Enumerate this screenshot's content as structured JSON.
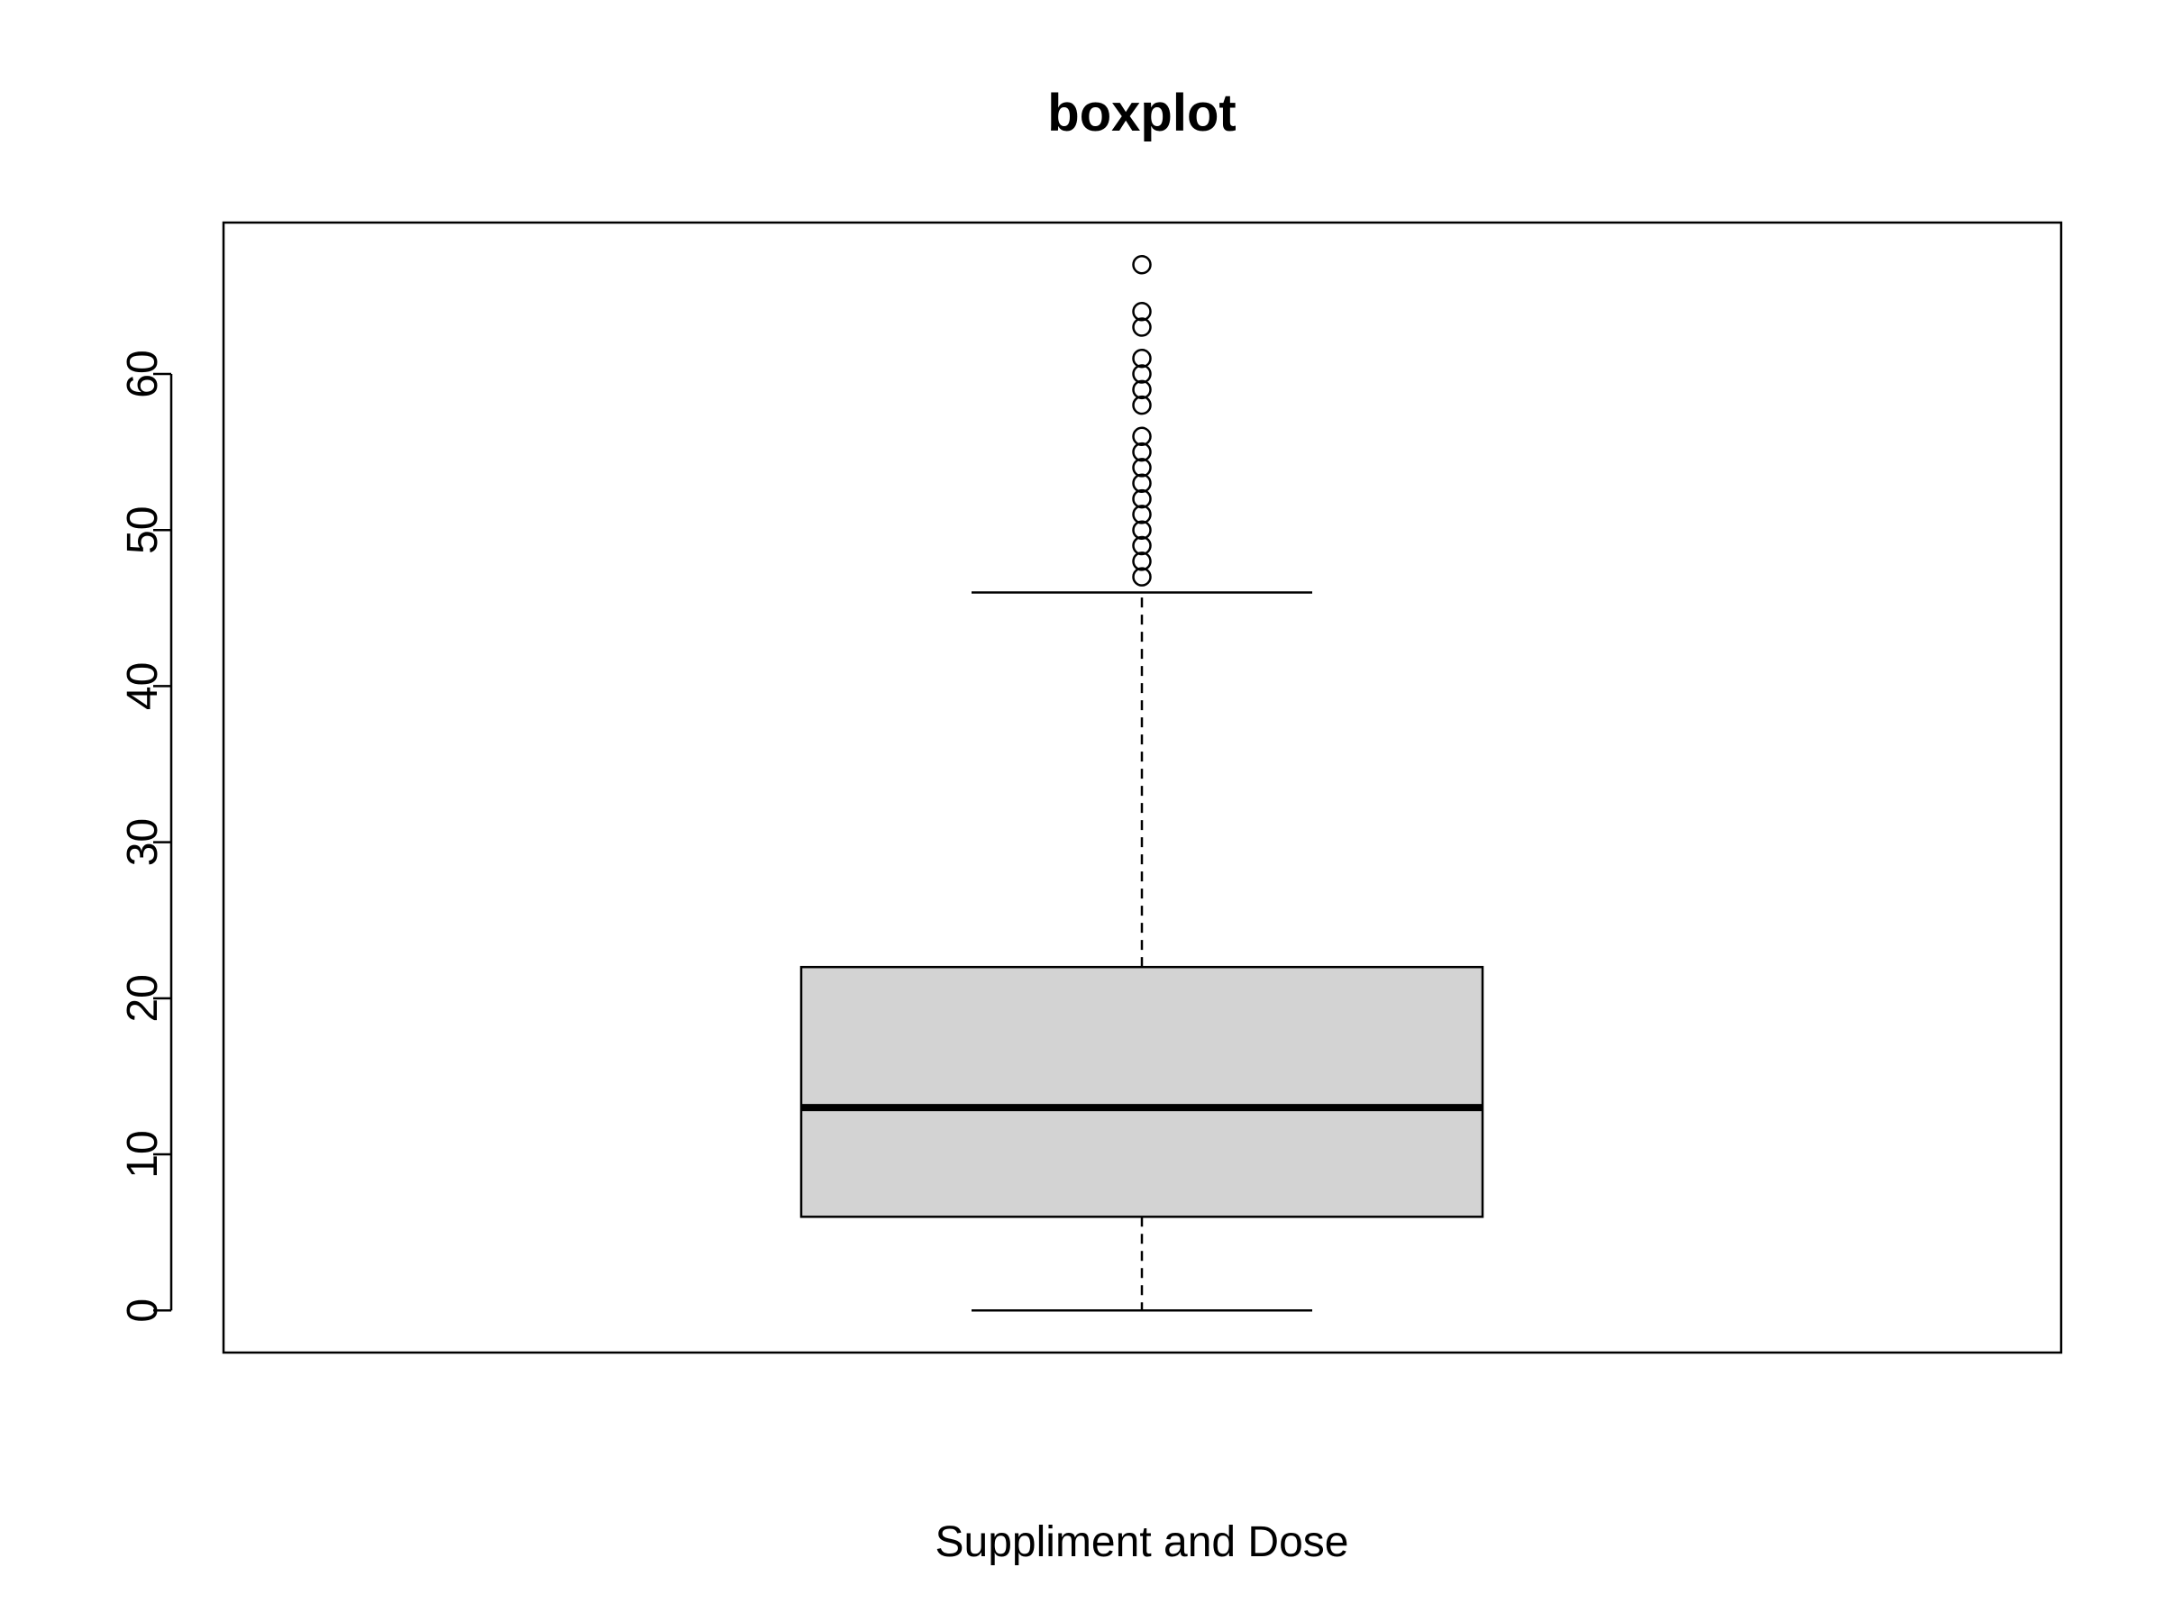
{
  "chart_data": {
    "type": "box",
    "title": "boxplot",
    "xlabel": "Suppliment and Dose",
    "ylabel": "",
    "ylim": [
      -2.7,
      69.7
    ],
    "y_ticks": [
      0,
      10,
      20,
      30,
      40,
      50,
      60
    ],
    "grid": false,
    "box": {
      "whisker_low": 0,
      "q1": 6,
      "median": 13,
      "q3": 22,
      "whisker_high": 46,
      "outliers": [
        47,
        48,
        49,
        50,
        51,
        52,
        53,
        54,
        55,
        56,
        58,
        59,
        60,
        61,
        63,
        64,
        67
      ]
    },
    "colors": {
      "box_fill": "#d3d3d3",
      "stroke": "#000000"
    }
  }
}
